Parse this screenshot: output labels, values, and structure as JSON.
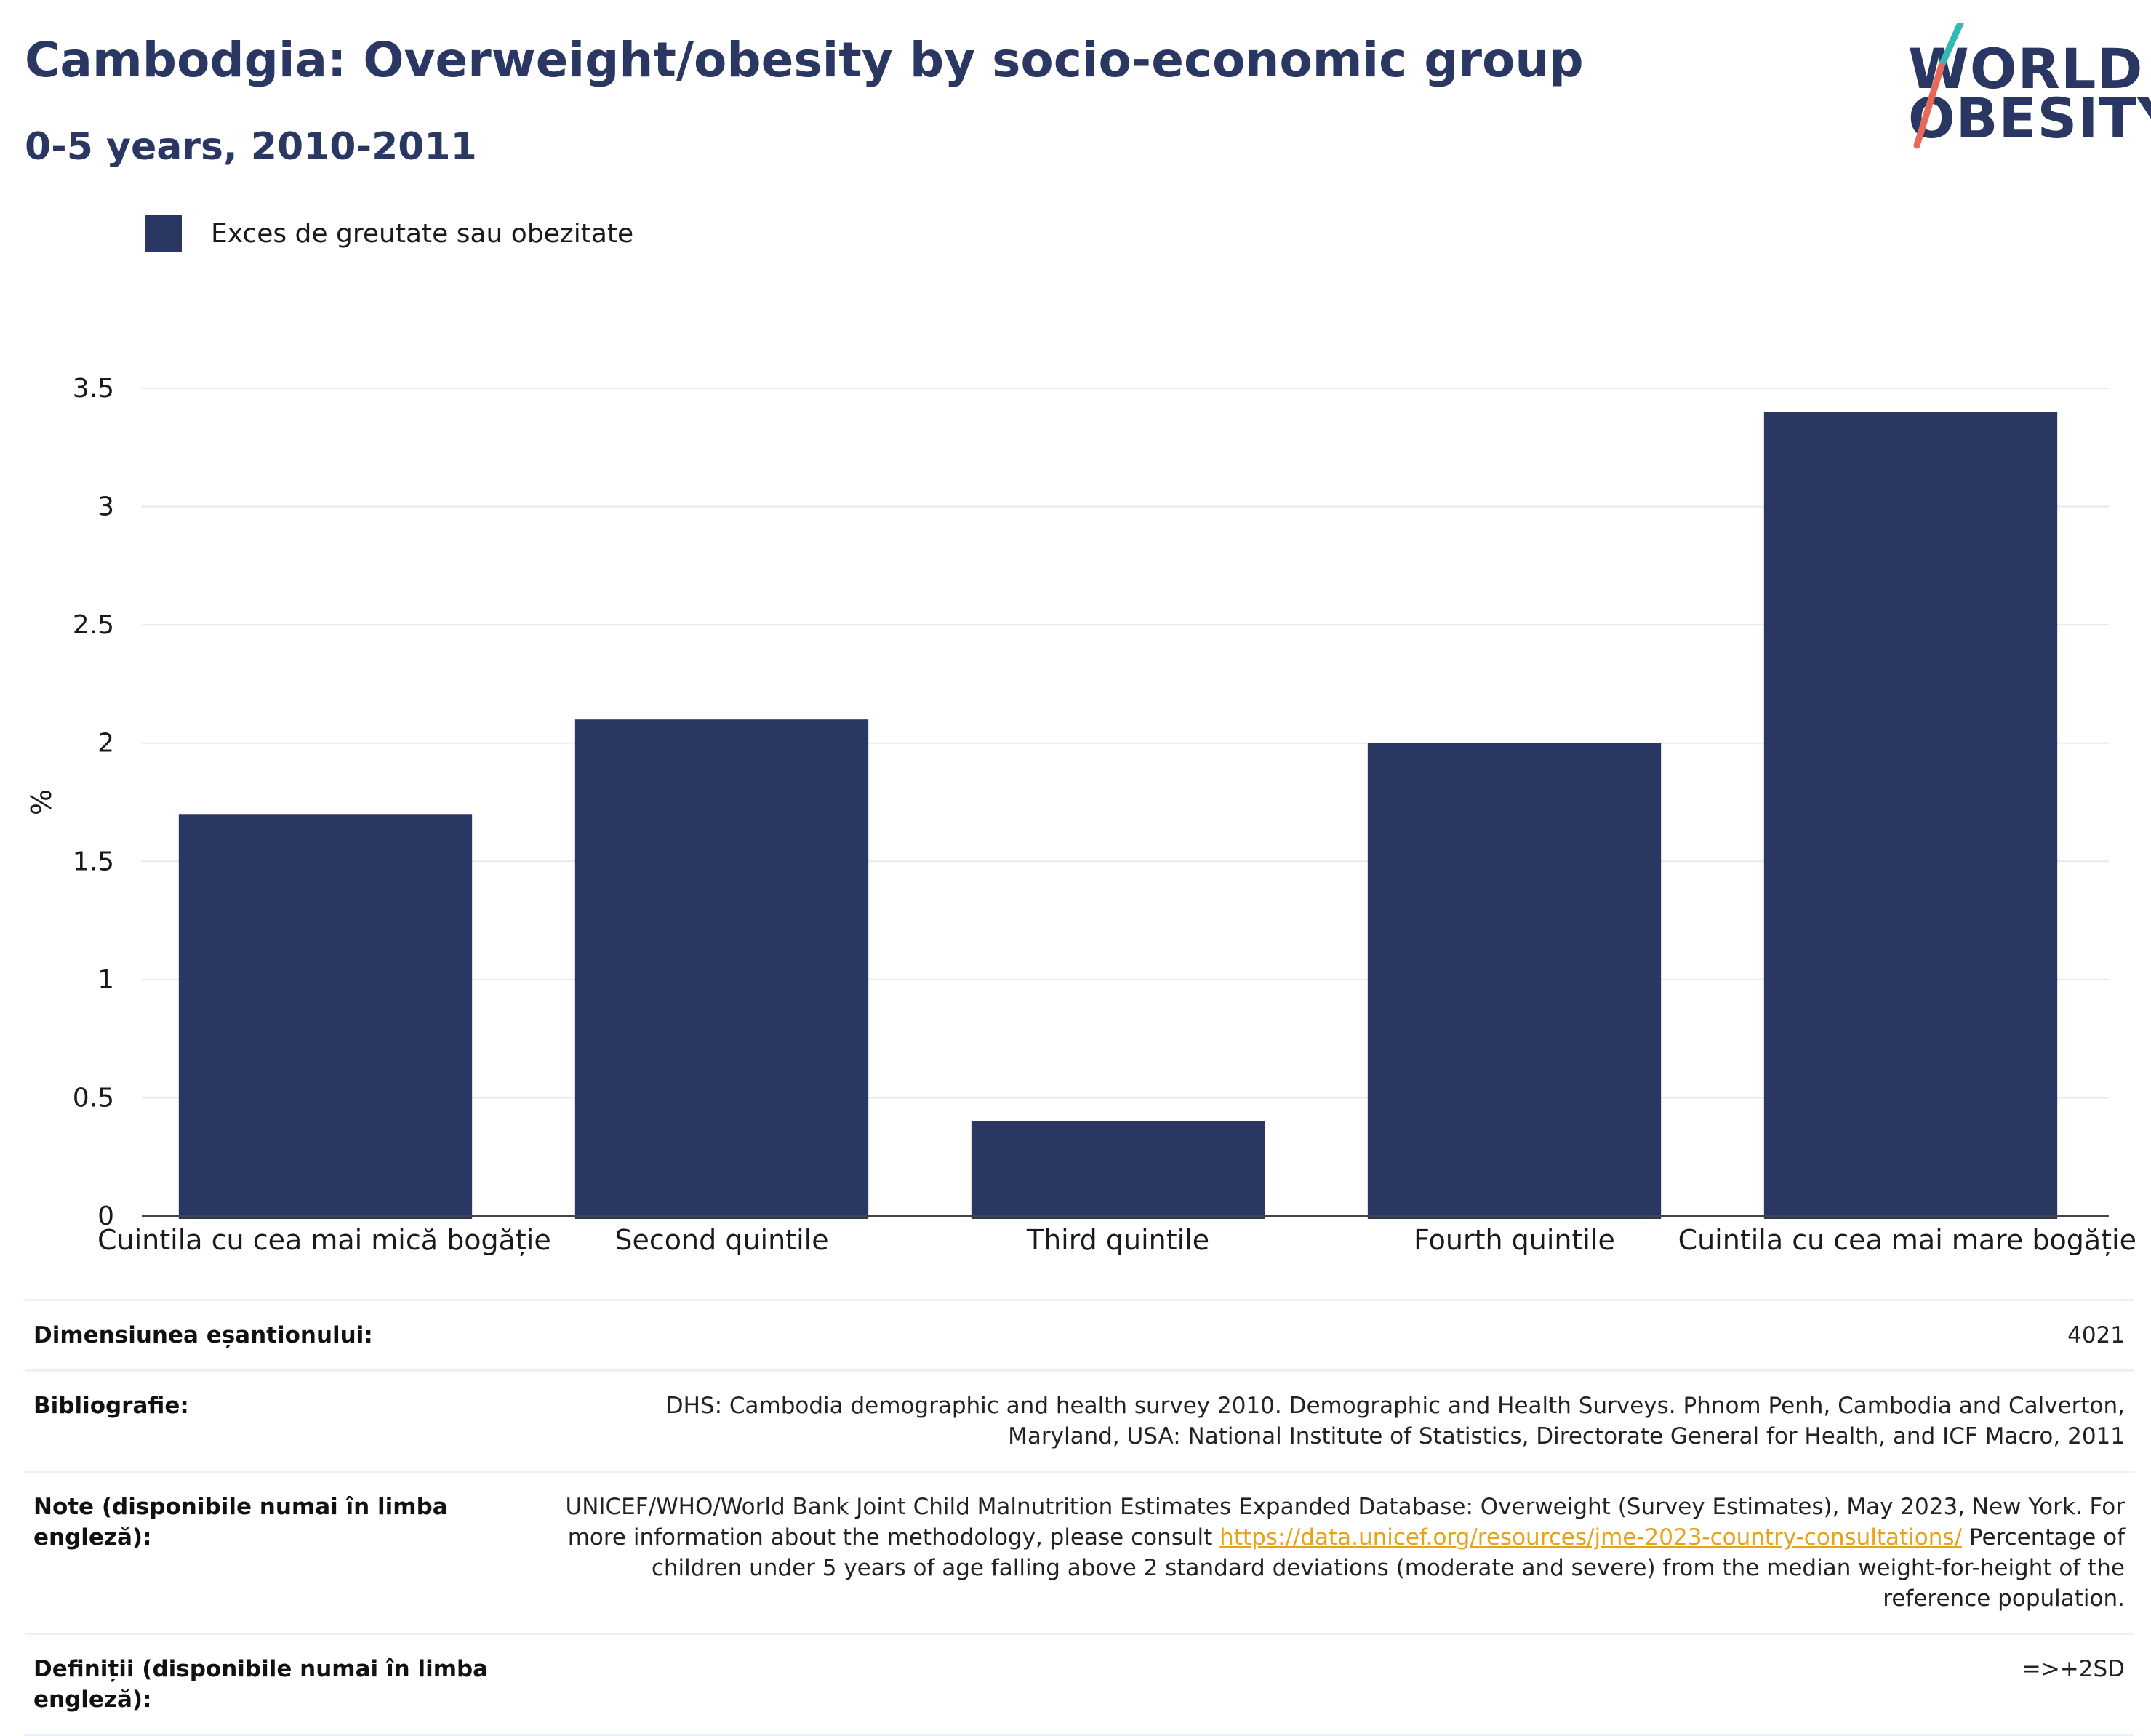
{
  "header": {
    "title": "Cambodgia: Overweight/obesity by socio-economic group",
    "subtitle": "0-5 years, 2010-2011"
  },
  "logo": {
    "line1": "WORLD",
    "line2": "OBESITY",
    "teal": "#35b7b5",
    "coral": "#e8695a"
  },
  "legend": {
    "label": "Exces de greutate sau obezitate",
    "color": "#2a3762"
  },
  "chart_data": {
    "type": "bar",
    "categories": [
      "Cuintila cu cea mai mică bogăție",
      "Second quintile",
      "Third quintile",
      "Fourth quintile",
      "Cuintila cu cea mai mare bogăție"
    ],
    "series": [
      {
        "name": "Exces de greutate sau obezitate",
        "values": [
          1.7,
          2.1,
          0.4,
          2.0,
          3.4
        ],
        "color": "#2a3762"
      }
    ],
    "ylabel": "%",
    "ylim": [
      0,
      3.5
    ],
    "yticks": [
      0,
      0.5,
      1,
      1.5,
      2,
      2.5,
      3,
      3.5
    ],
    "ytick_labels": [
      "0",
      "0.5",
      "1",
      "1.5",
      "2",
      "2.5",
      "3",
      "3.5"
    ],
    "grid": true,
    "legend_position": "top-left"
  },
  "info": {
    "sample_size_label": "Dimensiunea eșantionului:",
    "sample_size_value": "4021",
    "bibliography_label": "Bibliografie:",
    "bibliography_value": "DHS: Cambodia demographic and health survey 2010. Demographic and Health Surveys. Phnom Penh, Cambodia and Calverton, Maryland, USA: National Institute of Statistics, Directorate General for Health, and ICF Macro, 2011",
    "notes_label": "Note (disponibile numai în limba engleză):",
    "notes_value_before": "UNICEF/WHO/World Bank Joint Child Malnutrition Estimates Expanded Database: Overweight (Survey Estimates), May 2023, New York. For more information about the methodology, please consult ",
    "notes_link": "https://data.unicef.org/resources/jme-2023-country-consultations/",
    "notes_value_after": " Percentage of children under 5 years of age falling above 2 standard deviations (moderate and severe) from the median weight-for-height of the reference population.",
    "definitions_label": "Definiții (disponibile numai în limba engleză):",
    "definitions_value": "=>+2SD"
  }
}
